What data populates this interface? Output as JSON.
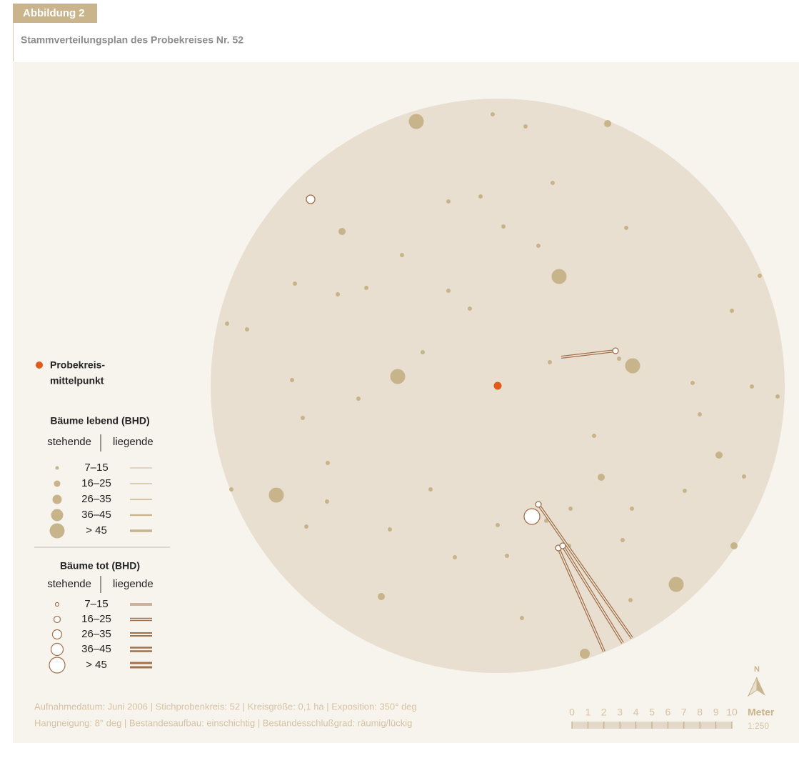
{
  "header": {
    "label": "Abbildung 2",
    "title": "Stammverteilungsplan des Probekreises Nr. 52"
  },
  "legend": {
    "center": [
      "Probekreis-",
      "mittelpunkt"
    ],
    "living": {
      "title": "Bäume lebend (BHD)",
      "standing": "stehende",
      "lying": "liegende",
      "classes": [
        "7–15",
        "16–25",
        "26–35",
        "36–45",
        "> 45"
      ]
    },
    "dead": {
      "title": "Bäume tot (BHD)",
      "standing": "stehende",
      "lying": "liegende",
      "classes": [
        "7–15",
        "16–25",
        "26–35",
        "36–45",
        "> 45"
      ]
    }
  },
  "footer": [
    "Aufnahmedatum: Juni 2006 | Stichprobenkreis: 52 | Kreisgröße: 0,1 ha | Exposition: 350° deg",
    "Hangneigung: 8° deg | Bestandesaufbau: einschichtig | Bestandesschlußgrad: räumig/lückig"
  ],
  "scale": {
    "ticks": [
      0,
      1,
      2,
      3,
      4,
      5,
      6,
      7,
      8,
      9,
      10
    ],
    "unit": "Meter",
    "ratio": "1:250"
  },
  "north": "N"
}
